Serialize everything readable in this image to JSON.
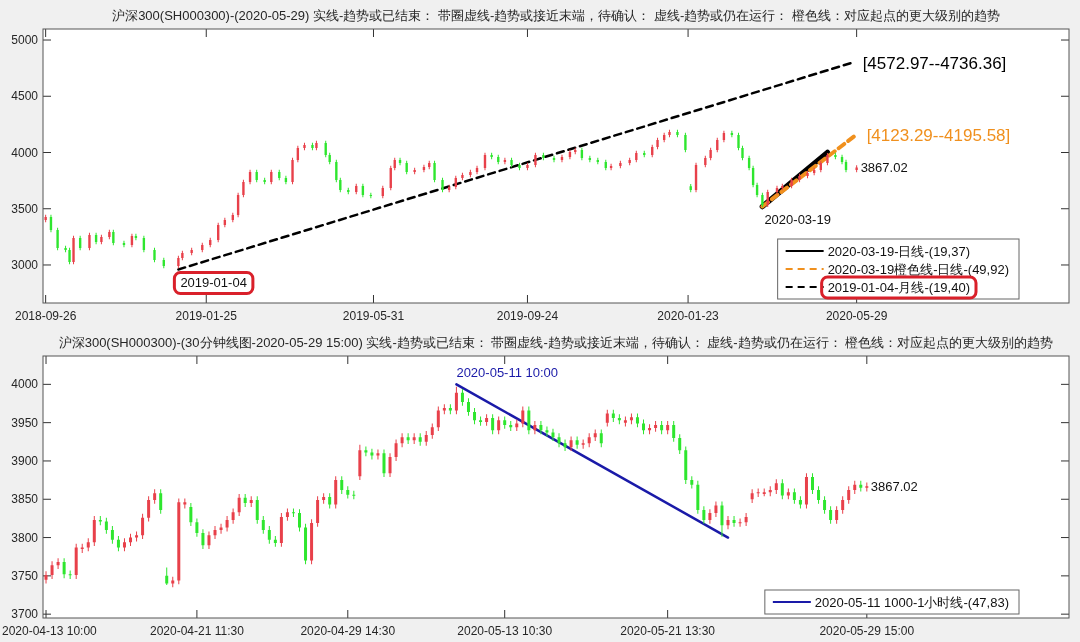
{
  "chart_data": [
    {
      "type": "candlestick",
      "title": "沪深300(SH000300)-(2020-05-29) 实线-趋势或已结束： 带圈虚线-趋势或接近末端，待确认： 虚线-趋势或仍在运行： 橙色线：对应起点的更大级别的趋势",
      "colors": [
        "#e8404a",
        "#2ee62e",
        "#2ee62e",
        "#2ee62e",
        "#2ee62e",
        "#e8404a",
        "#2ee62e",
        "#e8404a",
        "#2ee62e",
        "#e8404a",
        "#e8404a",
        "#2ee62e",
        "#2ee62e",
        "#e8404a",
        "#2ee62e",
        "#2ee62e",
        "#2ee62e",
        "#2ee62e",
        "#e8404a",
        "#e8404a",
        "#e8404a",
        "#e8404a",
        "#e8404a",
        "#e8404a",
        "#e8404a",
        "#e8404a",
        "#e8404a",
        "#e8404a",
        "#e8404a",
        "#2ee62e",
        "#2ee62e",
        "#e8404a",
        "#2ee62e",
        "#2ee62e",
        "#e8404a",
        "#e8404a",
        "#e8404a",
        "#2ee62e",
        "#e8404a",
        "#2ee62e",
        "#2ee62e",
        "#2ee62e",
        "#2ee62e",
        "#2ee62e",
        "#e8404a",
        "#2ee62e",
        "#2ee62e",
        "#e8404a",
        "#e8404a",
        "#e8404a",
        "#2ee62e",
        "#2ee62e",
        "#e8404a",
        "#e8404a",
        "#e8404a",
        "#2ee62e",
        "#2ee62e",
        "#e8404a",
        "#e8404a",
        "#e8404a",
        "#e8404a",
        "#e8404a",
        "#e8404a",
        "#2ee62e",
        "#2ee62e",
        "#e8404a",
        "#2ee62e",
        "#2ee62e",
        "#e8404a",
        "#e8404a",
        "#2ee62e",
        "#2ee62e",
        "#e8404a",
        "#e8404a",
        "#e8404a",
        "#2ee62e",
        "#2ee62e",
        "#2ee62e",
        "#2ee62e",
        "#e8404a",
        "#e8404a",
        "#e8404a",
        "#e8404a",
        "#2ee62e",
        "#e8404a",
        "#e8404a",
        "#e8404a",
        "#e8404a",
        "#2ee62e",
        "#2ee62e",
        "#2ee62e",
        "#e8404a",
        "#e8404a",
        "#e8404a",
        "#e8404a",
        "#e8404a",
        "#2ee62e",
        "#2ee62e",
        "#2ee62e",
        "#2ee62e",
        "#2ee62e",
        "#2ee62e",
        "#2ee62e",
        "#e8404a",
        "#e8404a",
        "#e8404a",
        "#e8404a",
        "#e8404a",
        "#e8404a",
        "#e8404a",
        "#e8404a",
        "#e8404a",
        "#2ee62e",
        "#2ee62e",
        "#2ee62e",
        "#e8404a"
      ],
      "x": [
        "2018-09-26",
        "2018-09-30",
        "2018-10-05",
        "2018-10-11",
        "2018-10-14",
        "2018-10-17",
        "2018-10-22",
        "2018-10-29",
        "2018-11-03",
        "2018-11-07",
        "2018-11-13",
        "2018-11-16",
        "2018-11-24",
        "2018-11-30",
        "2018-12-03",
        "2018-12-09",
        "2018-12-17",
        "2018-12-24",
        "2019-01-04",
        "2019-01-07",
        "2019-01-14",
        "2019-01-22",
        "2019-01-28",
        "2019-02-03",
        "2019-02-08",
        "2019-02-14",
        "2019-02-18",
        "2019-02-22",
        "2019-02-27",
        "2019-03-04",
        "2019-03-10",
        "2019-03-15",
        "2019-03-21",
        "2019-03-26",
        "2019-03-31",
        "2019-04-04",
        "2019-04-09",
        "2019-04-15",
        "2019-04-18",
        "2019-04-25",
        "2019-04-28",
        "2019-05-03",
        "2019-05-06",
        "2019-05-12",
        "2019-05-18",
        "2019-05-23",
        "2019-05-29",
        "2019-06-07",
        "2019-06-13",
        "2019-06-16",
        "2019-06-20",
        "2019-06-25",
        "2019-07-01",
        "2019-07-08",
        "2019-07-12",
        "2019-07-16",
        "2019-07-22",
        "2019-07-27",
        "2019-08-01",
        "2019-08-06",
        "2019-08-12",
        "2019-08-17",
        "2019-08-23",
        "2019-08-28",
        "2019-09-02",
        "2019-09-07",
        "2019-09-12",
        "2019-09-18",
        "2019-09-24",
        "2019-09-30",
        "2019-10-06",
        "2019-10-14",
        "2019-10-20",
        "2019-10-26",
        "2019-10-30",
        "2019-11-04",
        "2019-11-10",
        "2019-11-16",
        "2019-11-22",
        "2019-11-26",
        "2019-12-03",
        "2019-12-10",
        "2019-12-15",
        "2019-12-21",
        "2019-12-27",
        "2019-12-31",
        "2020-01-05",
        "2020-01-09",
        "2020-01-15",
        "2020-01-21",
        "2020-01-25",
        "2020-01-29",
        "2020-02-05",
        "2020-02-09",
        "2020-02-14",
        "2020-02-19",
        "2020-02-25",
        "2020-03-01",
        "2020-03-04",
        "2020-03-09",
        "2020-03-12",
        "2020-03-15",
        "2020-03-19",
        "2020-03-23",
        "2020-03-30",
        "2020-04-03",
        "2020-04-10",
        "2020-04-16",
        "2020-04-22",
        "2020-04-27",
        "2020-05-02",
        "2020-05-07",
        "2020-05-13",
        "2020-05-18",
        "2020-05-21",
        "2020-05-29"
      ],
      "ohlc": [
        [
          3400,
          3447,
          3380,
          3427
        ],
        [
          3427,
          3447,
          3291,
          3311
        ],
        [
          3311,
          3331,
          3131,
          3151
        ],
        [
          3151,
          3171,
          3113,
          3133
        ],
        [
          3133,
          3153,
          3007,
          3027
        ],
        [
          3027,
          3260,
          3007,
          3240
        ],
        [
          3240,
          3260,
          3131,
          3151
        ],
        [
          3151,
          3287,
          3131,
          3267
        ],
        [
          3267,
          3287,
          3184,
          3204
        ],
        [
          3204,
          3269,
          3184,
          3249
        ],
        [
          3249,
          3313,
          3229,
          3293
        ],
        [
          3293,
          3313,
          3176,
          3196
        ],
        [
          3196,
          3216,
          3158,
          3178
        ],
        [
          3178,
          3278,
          3158,
          3258
        ],
        [
          3258,
          3278,
          3220,
          3240
        ],
        [
          3240,
          3260,
          3113,
          3133
        ],
        [
          3133,
          3153,
          3024,
          3044
        ],
        [
          3044,
          3064,
          2971,
          2991
        ],
        [
          2991,
          3082,
          2971,
          3062
        ],
        [
          3062,
          3127,
          3042,
          3107
        ],
        [
          3107,
          3153,
          3087,
          3133
        ],
        [
          3133,
          3198,
          3113,
          3178
        ],
        [
          3178,
          3242,
          3158,
          3222
        ],
        [
          3222,
          3375,
          3202,
          3355
        ],
        [
          3355,
          3420,
          3335,
          3400
        ],
        [
          3400,
          3464,
          3380,
          3444
        ],
        [
          3444,
          3642,
          3424,
          3622
        ],
        [
          3622,
          3758,
          3602,
          3738
        ],
        [
          3738,
          3847,
          3718,
          3827
        ],
        [
          3827,
          3847,
          3736,
          3756
        ],
        [
          3756,
          3776,
          3718,
          3738
        ],
        [
          3738,
          3847,
          3718,
          3827
        ],
        [
          3827,
          3847,
          3753,
          3773
        ],
        [
          3773,
          3793,
          3718,
          3738
        ],
        [
          3738,
          3953,
          3718,
          3933
        ],
        [
          3933,
          4060,
          3913,
          4040
        ],
        [
          4040,
          4087,
          4020,
          4067
        ],
        [
          4067,
          4087,
          4020,
          4040
        ],
        [
          4040,
          4104,
          4020,
          4084
        ],
        [
          4084,
          4104,
          3958,
          3978
        ],
        [
          3978,
          3998,
          3896,
          3916
        ],
        [
          3916,
          3936,
          3736,
          3756
        ],
        [
          3756,
          3776,
          3647,
          3667
        ],
        [
          3667,
          3687,
          3629,
          3649
        ],
        [
          3649,
          3722,
          3629,
          3702
        ],
        [
          3702,
          3722,
          3602,
          3622
        ],
        [
          3622,
          3642,
          3593,
          3613
        ],
        [
          3613,
          3704,
          3593,
          3684
        ],
        [
          3684,
          3882,
          3664,
          3862
        ],
        [
          3862,
          3953,
          3842,
          3933
        ],
        [
          3933,
          3953,
          3887,
          3907
        ],
        [
          3907,
          3927,
          3807,
          3827
        ],
        [
          3827,
          3864,
          3807,
          3844
        ],
        [
          3844,
          3891,
          3824,
          3871
        ],
        [
          3871,
          3927,
          3851,
          3907
        ],
        [
          3907,
          3927,
          3736,
          3756
        ],
        [
          3756,
          3776,
          3647,
          3667
        ],
        [
          3667,
          3713,
          3647,
          3693
        ],
        [
          3693,
          3793,
          3673,
          3773
        ],
        [
          3773,
          3820,
          3753,
          3800
        ],
        [
          3800,
          3847,
          3780,
          3827
        ],
        [
          3827,
          3882,
          3807,
          3862
        ],
        [
          3862,
          3998,
          3842,
          3978
        ],
        [
          3978,
          3998,
          3940,
          3960
        ],
        [
          3960,
          3980,
          3896,
          3916
        ],
        [
          3916,
          3953,
          3896,
          3933
        ],
        [
          3933,
          3953,
          3869,
          3889
        ],
        [
          3889,
          3909,
          3842,
          3862
        ],
        [
          3862,
          3909,
          3842,
          3889
        ],
        [
          3889,
          3998,
          3869,
          3978
        ],
        [
          3978,
          3998,
          3931,
          3951
        ],
        [
          3951,
          3971,
          3913,
          3933
        ],
        [
          3933,
          3980,
          3913,
          3960
        ],
        [
          3960,
          4024,
          3940,
          4004
        ],
        [
          4004,
          4042,
          3984,
          4022
        ],
        [
          4022,
          4042,
          3931,
          3951
        ],
        [
          3951,
          3971,
          3913,
          3933
        ],
        [
          3933,
          3953,
          3896,
          3916
        ],
        [
          3916,
          3936,
          3842,
          3862
        ],
        [
          3862,
          3900,
          3842,
          3880
        ],
        [
          3880,
          3927,
          3860,
          3907
        ],
        [
          3907,
          3953,
          3887,
          3933
        ],
        [
          3933,
          4016,
          3913,
          3996
        ],
        [
          3996,
          4016,
          3958,
          3978
        ],
        [
          3978,
          4069,
          3958,
          4049
        ],
        [
          4049,
          4131,
          4029,
          4111
        ],
        [
          4111,
          4176,
          4091,
          4156
        ],
        [
          4156,
          4202,
          4136,
          4182
        ],
        [
          4182,
          4202,
          4136,
          4156
        ],
        [
          4156,
          4176,
          4002,
          4022
        ],
        [
          3700,
          3720,
          3647,
          3667
        ],
        [
          3667,
          3909,
          3647,
          3889
        ],
        [
          3889,
          3971,
          3869,
          3951
        ],
        [
          3951,
          4042,
          3931,
          4022
        ],
        [
          4022,
          4131,
          4002,
          4111
        ],
        [
          4111,
          4193,
          4091,
          4173
        ],
        [
          4173,
          4193,
          4136,
          4156
        ],
        [
          4156,
          4176,
          4020,
          4040
        ],
        [
          4040,
          4060,
          3931,
          3951
        ],
        [
          3951,
          3971,
          3842,
          3862
        ],
        [
          3862,
          3882,
          3691,
          3711
        ],
        [
          3711,
          3731,
          3602,
          3622
        ],
        [
          3622,
          3642,
          3516,
          3533
        ],
        [
          3533,
          3669,
          3516,
          3649
        ],
        [
          3649,
          3704,
          3629,
          3684
        ],
        [
          3684,
          3722,
          3664,
          3702
        ],
        [
          3702,
          3776,
          3682,
          3756
        ],
        [
          3756,
          3811,
          3736,
          3791
        ],
        [
          3791,
          3838,
          3771,
          3818
        ],
        [
          3818,
          3864,
          3798,
          3844
        ],
        [
          3844,
          3927,
          3824,
          3907
        ],
        [
          3907,
          3996,
          3887,
          3978
        ],
        [
          3978,
          3998,
          3940,
          3960
        ],
        [
          3960,
          3980,
          3896,
          3916
        ],
        [
          3916,
          3936,
          3824,
          3844
        ],
        [
          3844,
          3887,
          3824,
          3867.02
        ]
      ],
      "series": [
        {
          "type": "line",
          "name": "2020-03-19-日线-(19,37)",
          "color": "#000000",
          "line_style": "solid",
          "x": [
            "2020-03-19",
            "2020-05-07"
          ],
          "values": [
            3520,
            4000
          ]
        },
        {
          "type": "line",
          "name": "2020-03-19橙色线-日线-(49,92)",
          "color": "#f0901e",
          "line_style": "dashed",
          "x": [
            "2020-03-19",
            "2020-05-29"
          ],
          "values": [
            3520,
            4160
          ]
        },
        {
          "type": "line",
          "name": "2019-01-04-月线-(19,40)",
          "color": "#000000",
          "line_style": "dashed",
          "x": [
            "2019-01-04",
            "2020-05-26"
          ],
          "values": [
            2960,
            4800
          ]
        }
      ],
      "annotations": [
        {
          "text": "2019-01-04",
          "x": "2019-01-04",
          "y": 2960
        },
        {
          "text": "[4572.97--4736.36]",
          "x": "2020-05-26",
          "y": 4800
        },
        {
          "text": "[4123.29--4195.58]",
          "x": "2020-05-29",
          "y": 4160
        },
        {
          "text": "2020-03-19",
          "x": "2020-03-19",
          "y": 3520
        },
        {
          "text": "3867.02",
          "x": "2020-05-29",
          "y": 3867.02
        }
      ],
      "legend": "bottom right",
      "xlim": [
        "2018-09-24",
        "2020-11-05"
      ],
      "xticks": [
        "2018-09-26",
        "2019-01-25",
        "2019-05-31",
        "2019-09-24",
        "2020-01-23",
        "2020-05-29"
      ],
      "ylim": [
        2662,
        5098
      ],
      "yticks": [
        3000,
        3500,
        4000,
        4500,
        5000
      ]
    },
    {
      "type": "candlestick",
      "title": "沪深300(SH000300)-(30分钟线图-2020-05-29 15:00) 实线-趋势或已结束： 带圈虚线-趋势或接近末端，待确认： 虚线-趋势或仍在运行： 橙色线：对应起点的更大级别的趋势",
      "colors": [
        "#e8404a",
        "#e8404a",
        "#e8404a",
        "#2ee62e",
        "#2ee62e",
        "#e8404a",
        "#e8404a",
        "#e8404a",
        "#e8404a",
        "#2ee62e",
        "#2ee62e",
        "#2ee62e",
        "#2ee62e",
        "#e8404a",
        "#e8404a",
        "#e8404a",
        "#e8404a",
        "#e8404a",
        "#e8404a",
        "#2ee62e",
        "#2ee62e",
        "#e8404a",
        "#e8404a",
        "#e8404a",
        "#2ee62e",
        "#2ee62e",
        "#2ee62e",
        "#e8404a",
        "#e8404a",
        "#e8404a",
        "#e8404a",
        "#e8404a",
        "#e8404a",
        "#2ee62e",
        "#e8404a",
        "#2ee62e",
        "#2ee62e",
        "#2ee62e",
        "#2ee62e",
        "#e8404a",
        "#e8404a",
        "#2ee62e",
        "#2ee62e",
        "#2ee62e",
        "#e8404a",
        "#e8404a",
        "#e8404a",
        "#2ee62e",
        "#e8404a",
        "#2ee62e",
        "#2ee62e",
        "#2ee62e",
        "#e8404a",
        "#2ee62e",
        "#2ee62e",
        "#e8404a",
        "#2ee62e",
        "#e8404a",
        "#e8404a",
        "#e8404a",
        "#2ee62e",
        "#e8404a",
        "#2ee62e",
        "#e8404a",
        "#e8404a",
        "#e8404a",
        "#e8404a",
        "#2ee62e",
        "#e8404a",
        "#2ee62e",
        "#2ee62e",
        "#2ee62e",
        "#2ee62e",
        "#e8404a",
        "#2ee62e",
        "#e8404a",
        "#2ee62e",
        "#2ee62e",
        "#e8404a",
        "#e8404a",
        "#2ee62e",
        "#e8404a",
        "#2ee62e",
        "#2ee62e",
        "#2ee62e",
        "#2ee62e",
        "#2ee62e",
        "#e8404a",
        "#2ee62e",
        "#e8404a",
        "#e8404a",
        "#e8404a",
        "#2ee62e",
        "#e8404a",
        "#2ee62e",
        "#2ee62e",
        "#e8404a",
        "#e8404a",
        "#2ee62e",
        "#2ee62e",
        "#e8404a",
        "#e8404a",
        "#2ee62e",
        "#e8404a",
        "#2ee62e",
        "#2ee62e",
        "#2ee62e",
        "#2ee62e",
        "#2ee62e",
        "#2ee62e",
        "#e8404a",
        "#e8404a",
        "#2ee62e",
        "#e8404a",
        "#2ee62e",
        "#e8404a",
        "#e8404a",
        "#e8404a",
        "#e8404a",
        "#e8404a",
        "#e8404a",
        "#e8404a",
        "#2ee62e",
        "#e8404a",
        "#2ee62e",
        "#2ee62e",
        "#e8404a",
        "#2ee62e",
        "#2ee62e",
        "#2ee62e",
        "#2ee62e",
        "#e8404a",
        "#e8404a",
        "#e8404a",
        "#e8404a",
        "#2ee62e",
        "#e8404a",
        null,
        null,
        null,
        null,
        null,
        null,
        null,
        null,
        null,
        null,
        null,
        null,
        null,
        null,
        null,
        null,
        null,
        null,
        null,
        null,
        null,
        null,
        null,
        null,
        null,
        null,
        null,
        null,
        null,
        null,
        null,
        null,
        null
      ],
      "categories": [
        "2020-04-13 10:00",
        null,
        null,
        null,
        null,
        null,
        null,
        null,
        null,
        null,
        null,
        null,
        null,
        null,
        null,
        null,
        null,
        null,
        null,
        null,
        null,
        null,
        null,
        null,
        null,
        "2020-04-21 11:30",
        null,
        null,
        null,
        null,
        null,
        null,
        null,
        null,
        null,
        null,
        null,
        null,
        null,
        null,
        null,
        null,
        null,
        null,
        null,
        null,
        null,
        null,
        null,
        null,
        "2020-04-29 14:30",
        null,
        null,
        null,
        null,
        null,
        null,
        null,
        null,
        null,
        null,
        null,
        null,
        null,
        null,
        null,
        null,
        null,
        null,
        null,
        null,
        null,
        null,
        null,
        null,
        null,
        "2020-05-13 10:30",
        null,
        null,
        null,
        null,
        null,
        null,
        null,
        null,
        null,
        null,
        null,
        null,
        null,
        null,
        null,
        null,
        null,
        null,
        null,
        null,
        null,
        null,
        null,
        null,
        null,
        null,
        "2020-05-21 13:30",
        null,
        null,
        null,
        null,
        null,
        null,
        null,
        null,
        null,
        null,
        null,
        null,
        null,
        null,
        null,
        null,
        null,
        null,
        null,
        null,
        null,
        null,
        null,
        null,
        null,
        null,
        null,
        null,
        null,
        null,
        null,
        null,
        "2020-05-29 15:00",
        null,
        null,
        null,
        null,
        null,
        null,
        null,
        null,
        null,
        null,
        null,
        null,
        null,
        null,
        null,
        null,
        null,
        null,
        null,
        null,
        null,
        null,
        null,
        null,
        null,
        null,
        null,
        null,
        null,
        null,
        null,
        null,
        null
      ],
      "ohlc": [
        [
          3745,
          3756,
          3740,
          3751
        ],
        [
          3751,
          3769,
          3746,
          3764
        ],
        [
          3764,
          3773,
          3759,
          3768
        ],
        [
          3768,
          3773,
          3747,
          3752
        ],
        [
          3752,
          3757,
          3746,
          3751
        ],
        [
          3751,
          3792,
          3746,
          3787
        ],
        [
          3785,
          3792,
          3780,
          3787
        ],
        [
          3787,
          3799,
          3782,
          3794
        ],
        [
          3794,
          3828,
          3789,
          3823
        ],
        [
          3823,
          3828,
          3816,
          3821
        ],
        [
          3821,
          3826,
          3805,
          3810
        ],
        [
          3810,
          3815,
          3792,
          3797
        ],
        [
          3797,
          3802,
          3782,
          3787
        ],
        [
          3787,
          3799,
          3782,
          3794
        ],
        [
          3794,
          3805,
          3789,
          3800
        ],
        [
          3800,
          3808,
          3795,
          3803
        ],
        [
          3803,
          3831,
          3798,
          3826
        ],
        [
          3826,
          3854,
          3821,
          3849
        ],
        [
          3849,
          3863,
          3844,
          3858
        ],
        [
          3858,
          3863,
          3831,
          3836
        ],
        [
          3750,
          3761,
          3738,
          3740
        ],
        [
          3740,
          3749,
          3735,
          3744
        ],
        [
          3744,
          3851,
          3739,
          3846
        ],
        [
          3843,
          3851,
          3838,
          3846
        ],
        [
          3840,
          3845,
          3815,
          3820
        ],
        [
          3820,
          3825,
          3801,
          3806
        ],
        [
          3806,
          3811,
          3785,
          3790
        ],
        [
          3790,
          3808,
          3785,
          3803
        ],
        [
          3803,
          3815,
          3798,
          3810
        ],
        [
          3810,
          3818,
          3805,
          3813
        ],
        [
          3813,
          3828,
          3808,
          3823
        ],
        [
          3823,
          3838,
          3818,
          3833
        ],
        [
          3833,
          3857,
          3828,
          3852
        ],
        [
          3852,
          3857,
          3840,
          3845
        ],
        [
          3845,
          3854,
          3840,
          3849
        ],
        [
          3849,
          3854,
          3818,
          3823
        ],
        [
          3823,
          3828,
          3805,
          3810
        ],
        [
          3810,
          3815,
          3792,
          3797
        ],
        [
          3797,
          3802,
          3788,
          3793
        ],
        [
          3793,
          3832,
          3788,
          3827
        ],
        [
          3827,
          3838,
          3822,
          3833
        ],
        [
          3833,
          3838,
          3827,
          3832
        ],
        [
          3832,
          3837,
          3808,
          3813
        ],
        [
          3813,
          3818,
          3765,
          3770
        ],
        [
          3770,
          3824,
          3765,
          3819
        ],
        [
          3819,
          3854,
          3814,
          3849
        ],
        [
          3849,
          3858,
          3844,
          3853
        ],
        [
          3853,
          3858,
          3838,
          3843
        ],
        [
          3843,
          3880,
          3838,
          3875
        ],
        [
          3875,
          3880,
          3857,
          3862
        ],
        [
          3862,
          3867,
          3851,
          3856
        ],
        [
          3856,
          3861,
          3850,
          3855
        ],
        [
          3880,
          3921,
          3875,
          3914
        ],
        [
          3914,
          3919,
          3906,
          3911
        ],
        [
          3911,
          3916,
          3902,
          3907
        ],
        [
          3907,
          3915,
          3902,
          3910
        ],
        [
          3910,
          3915,
          3879,
          3884
        ],
        [
          3884,
          3910,
          3879,
          3905
        ],
        [
          3905,
          3928,
          3900,
          3923
        ],
        [
          3923,
          3936,
          3918,
          3931
        ],
        [
          3931,
          3936,
          3922,
          3927
        ],
        [
          3927,
          3936,
          3922,
          3931
        ],
        [
          3931,
          3936,
          3920,
          3925
        ],
        [
          3925,
          3939,
          3920,
          3934
        ],
        [
          3934,
          3949,
          3929,
          3944
        ],
        [
          3944,
          3971,
          3939,
          3966
        ],
        [
          3966,
          3974,
          3961,
          3969
        ],
        [
          3969,
          3974,
          3961,
          3966
        ],
        [
          3966,
          3997,
          3961,
          3989
        ],
        [
          3989,
          3994,
          3972,
          3977
        ],
        [
          3977,
          3982,
          3959,
          3964
        ],
        [
          3964,
          3969,
          3948,
          3953
        ],
        [
          3953,
          3958,
          3946,
          3951
        ],
        [
          3951,
          3961,
          3946,
          3956
        ],
        [
          3956,
          3961,
          3935,
          3940
        ],
        [
          3940,
          3958,
          3935,
          3953
        ],
        [
          3953,
          3958,
          3942,
          3947
        ],
        [
          3947,
          3952,
          3939,
          3944
        ],
        [
          3944,
          3954,
          3939,
          3949
        ],
        [
          3949,
          3971,
          3944,
          3966
        ],
        [
          3966,
          3971,
          3935,
          3940
        ],
        [
          3940,
          3952,
          3935,
          3947
        ],
        [
          3947,
          3952,
          3935,
          3940
        ],
        [
          3940,
          3945,
          3932,
          3937
        ],
        [
          3937,
          3942,
          3926,
          3931
        ],
        [
          3931,
          3936,
          3918,
          3923
        ],
        [
          3923,
          3928,
          3913,
          3918
        ],
        [
          3918,
          3932,
          3913,
          3927
        ],
        [
          3927,
          3932,
          3916,
          3921
        ],
        [
          3921,
          3928,
          3916,
          3923
        ],
        [
          3923,
          3936,
          3918,
          3931
        ],
        [
          3931,
          3941,
          3926,
          3936
        ],
        [
          3936,
          3941,
          3918,
          3923
        ],
        [
          3950,
          3967,
          3945,
          3962
        ],
        [
          3962,
          3967,
          3951,
          3956
        ],
        [
          3956,
          3961,
          3948,
          3953
        ],
        [
          3950,
          3958,
          3945,
          3953
        ],
        [
          3953,
          3962,
          3948,
          3957
        ],
        [
          3957,
          3962,
          3944,
          3949
        ],
        [
          3949,
          3954,
          3935,
          3940
        ],
        [
          3940,
          3948,
          3935,
          3943
        ],
        [
          3943,
          3952,
          3938,
          3947
        ],
        [
          3947,
          3952,
          3935,
          3940
        ],
        [
          3940,
          3952,
          3935,
          3947
        ],
        [
          3947,
          3952,
          3925,
          3930
        ],
        [
          3930,
          3935,
          3909,
          3914
        ],
        [
          3914,
          3919,
          3870,
          3875
        ],
        [
          3875,
          3880,
          3864,
          3869
        ],
        [
          3869,
          3874,
          3831,
          3836
        ],
        [
          3836,
          3841,
          3818,
          3823
        ],
        [
          3823,
          3837,
          3818,
          3832
        ],
        [
          3832,
          3847,
          3827,
          3842
        ],
        [
          3842,
          3847,
          3801,
          3816
        ],
        [
          3816,
          3828,
          3811,
          3823
        ],
        [
          3823,
          3828,
          3814,
          3819
        ],
        [
          3819,
          3825,
          3814,
          3820
        ],
        [
          3820,
          3832,
          3815,
          3827
        ],
        [
          3850,
          3863,
          3845,
          3858
        ],
        [
          3858,
          3864,
          3853,
          3859
        ],
        [
          3857,
          3864,
          3854,
          3859
        ],
        [
          3859,
          3867,
          3854,
          3862
        ],
        [
          3862,
          3876,
          3857,
          3871
        ],
        [
          3871,
          3876,
          3850,
          3855
        ],
        [
          3855,
          3864,
          3850,
          3859
        ],
        [
          3859,
          3864,
          3844,
          3849
        ],
        [
          3849,
          3854,
          3838,
          3843
        ],
        [
          3843,
          3884,
          3838,
          3879
        ],
        [
          3879,
          3884,
          3857,
          3862
        ],
        [
          3862,
          3867,
          3844,
          3849
        ],
        [
          3849,
          3854,
          3831,
          3836
        ],
        [
          3836,
          3841,
          3818,
          3823
        ],
        [
          3823,
          3841,
          3818,
          3836
        ],
        [
          3836,
          3854,
          3831,
          3849
        ],
        [
          3849,
          3867,
          3844,
          3862
        ],
        [
          3862,
          3874,
          3857,
          3869
        ],
        [
          3869,
          3874,
          3860,
          3865
        ],
        [
          3865,
          3872,
          3860,
          3867.02
        ],
        null,
        null,
        null,
        null,
        null,
        null,
        null,
        null,
        null,
        null,
        null,
        null,
        null,
        null,
        null,
        null,
        null,
        null,
        null,
        null,
        null,
        null,
        null,
        null,
        null,
        null,
        null,
        null,
        null,
        null,
        null,
        null,
        null
      ],
      "series": [
        {
          "type": "line",
          "name": "2020-05-11 1000-1小时线-(47,83)",
          "color": "#1a1aa8",
          "line_style": "solid",
          "values": [
            null,
            null,
            null,
            null,
            null,
            null,
            null,
            null,
            null,
            null,
            null,
            null,
            null,
            null,
            null,
            null,
            null,
            null,
            null,
            null,
            null,
            null,
            null,
            null,
            null,
            null,
            null,
            null,
            null,
            null,
            null,
            null,
            null,
            null,
            null,
            null,
            null,
            null,
            null,
            null,
            null,
            null,
            null,
            null,
            null,
            null,
            null,
            null,
            null,
            null,
            null,
            null,
            null,
            null,
            null,
            null,
            null,
            null,
            null,
            null,
            null,
            null,
            null,
            null,
            null,
            null,
            null,
            null,
            4000,
            null,
            null,
            null,
            null,
            null,
            null,
            null,
            null,
            null,
            null,
            null,
            null,
            null,
            null,
            null,
            null,
            null,
            null,
            null,
            null,
            null,
            null,
            null,
            null,
            null,
            null,
            null,
            null,
            null,
            null,
            null,
            null,
            null,
            null,
            null,
            null,
            null,
            null,
            null,
            null,
            null,
            null,
            null,
            null,
            3800,
            null,
            null,
            null,
            null,
            null,
            null,
            null,
            null,
            null,
            null,
            null,
            null,
            null,
            null,
            null,
            null,
            null,
            null,
            null,
            null,
            null,
            null,
            null,
            null,
            null,
            null,
            null,
            null,
            null,
            null,
            null,
            null,
            null,
            null,
            null,
            null,
            null,
            null,
            null,
            null,
            null,
            null,
            null,
            null,
            null,
            null,
            null,
            null,
            null,
            null,
            null,
            null,
            null,
            null,
            null,
            null
          ]
        }
      ],
      "annotations": [
        "2020-05-11 10:00",
        "3867.02"
      ],
      "legend": "bottom right",
      "ylim": [
        3695,
        4037
      ],
      "yticks": [
        3700,
        3750,
        3800,
        3850,
        3900,
        3950,
        4000
      ]
    }
  ]
}
